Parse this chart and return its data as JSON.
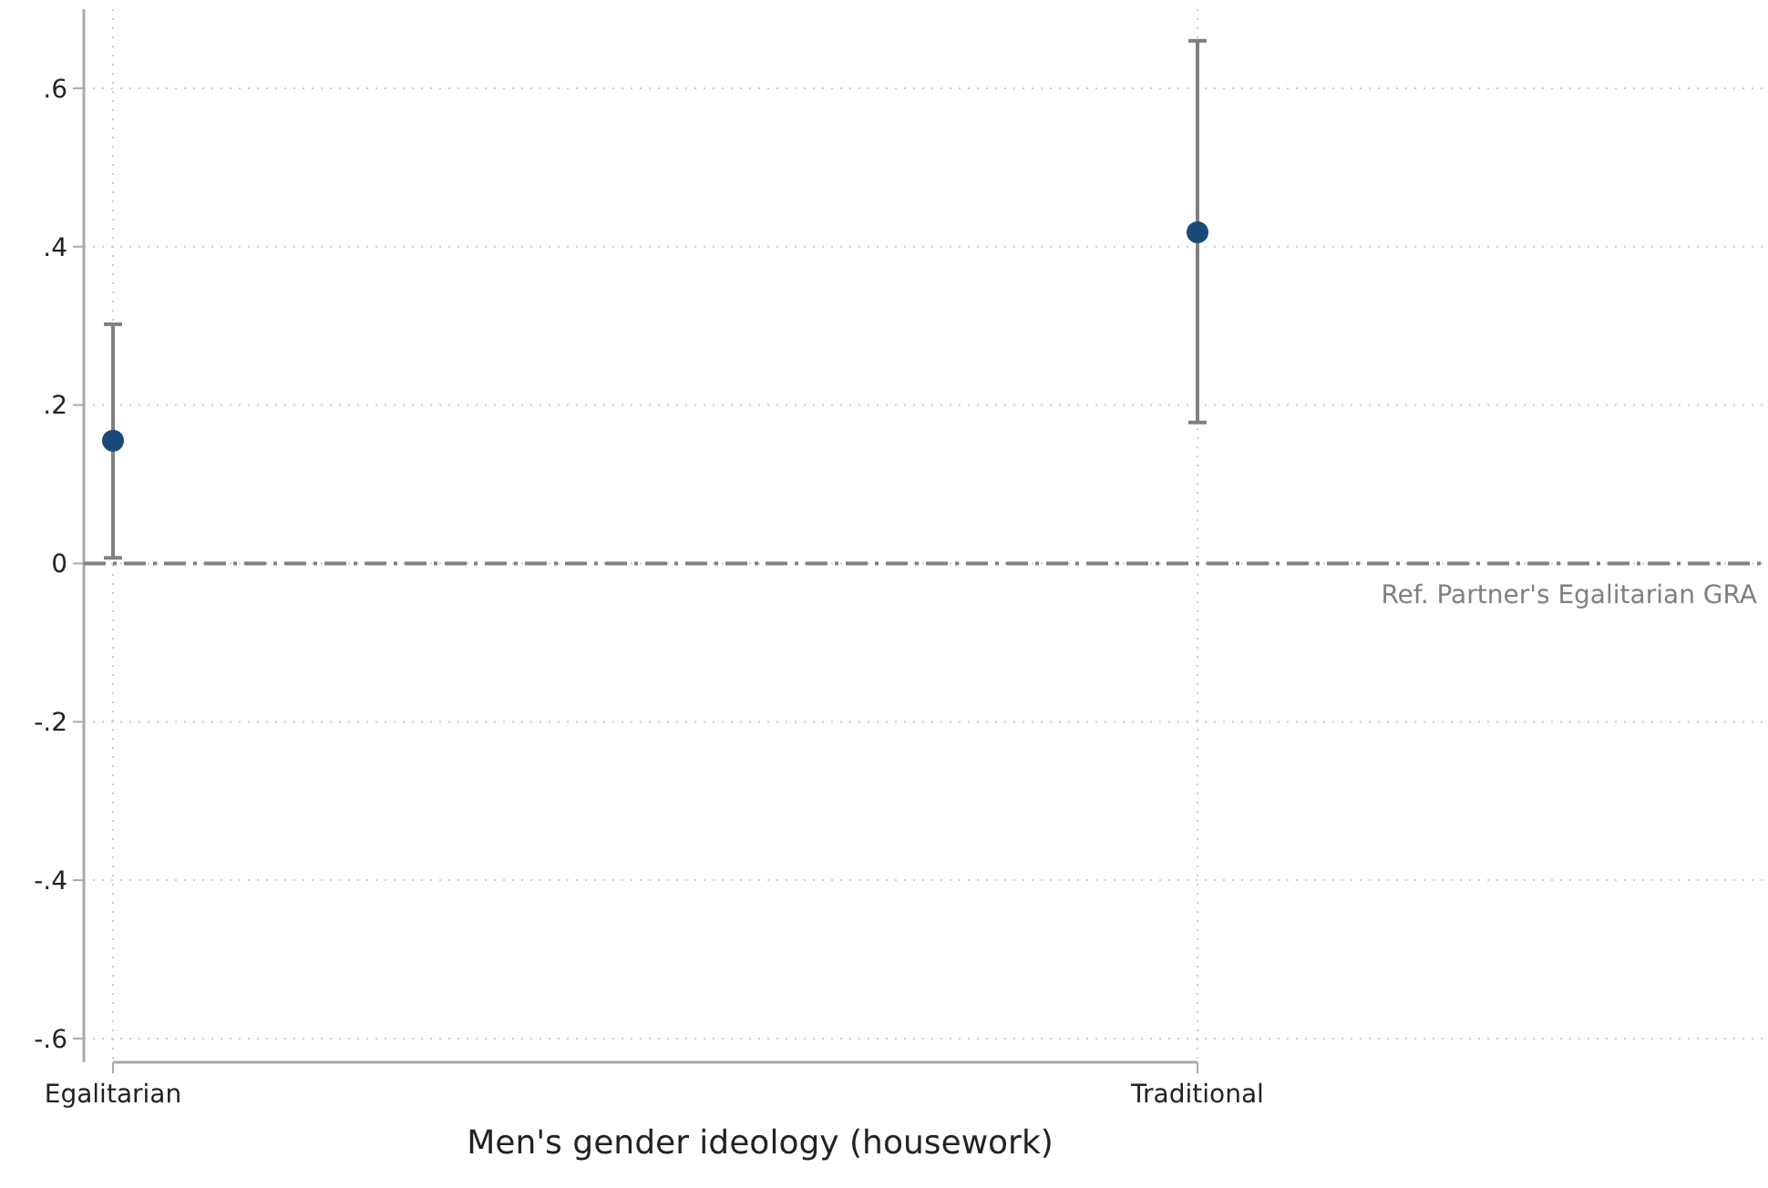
{
  "chart_data": {
    "type": "scatter",
    "xlabel": "Men's gender ideology (housework)",
    "categories": [
      "Egalitarian",
      "Traditional"
    ],
    "series": [
      {
        "color": "#1a4a78",
        "values": [
          0.155,
          0.418
        ],
        "errors": [
          [
            0.007,
            0.302
          ],
          [
            0.178,
            0.66
          ]
        ]
      }
    ],
    "ylim": [
      -0.63,
      0.7
    ],
    "yticks": [
      {
        "value": -0.6,
        "label": "-.6"
      },
      {
        "value": -0.4,
        "label": "-.4"
      },
      {
        "value": -0.2,
        "label": "-.2"
      },
      0,
      {
        "value": 0.2,
        "label": ".2"
      },
      {
        "value": 0.4,
        "label": ".4"
      },
      {
        "value": 0.6,
        "label": ".6"
      }
    ],
    "ref_lines": [
      {
        "axis": "y",
        "value": 0,
        "label": "Ref. Partner's Egalitarian GRA",
        "color": "#808080",
        "line_style": "dashed"
      }
    ],
    "grid": true,
    "marker": "circle"
  }
}
